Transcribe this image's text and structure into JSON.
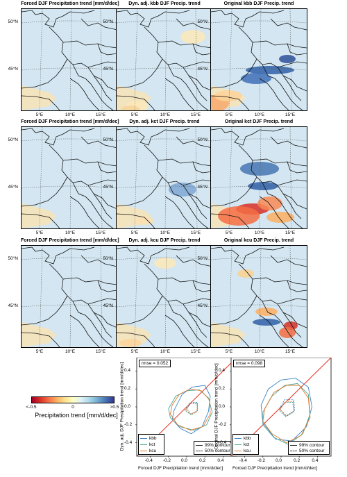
{
  "maps": {
    "lat_ticks": [
      "50°N",
      "45°N"
    ],
    "lon_ticks": [
      "5°E",
      "10°E",
      "15°E"
    ],
    "titles": [
      [
        "Forced DJF Precipitation trend [mm/d/dec]",
        "Dyn. adj. kbb DJF Precip. trend",
        "Original kbb DJF Precip. trend"
      ],
      [
        "Forced DJF Precipitation trend [mm/d/dec]",
        "Dyn. adj. kct DJF Precip. trend",
        "Original kct DJF Precip. trend"
      ],
      [
        "Forced DJF Precipitation trend [mm/d/dec]",
        "Dyn. adj. kcu DJF Precip. trend",
        "Original kcu DJF Precip. trend"
      ]
    ]
  },
  "colorbar": {
    "min_label": "<-0.5",
    "mid_label": "0",
    "max_label": ">0.5",
    "title": "Precipitation trend [mm/d/dec]",
    "colors": [
      "#a50026",
      "#d73027",
      "#f46d43",
      "#fdae61",
      "#fee090",
      "#ffffbf",
      "#e0f3f8",
      "#abd9e9",
      "#74add1",
      "#4575b4",
      "#313695"
    ]
  },
  "chart_data": [
    {
      "type": "scatter",
      "rmse_label": "rmse = 0.052",
      "xlabel": "Forced DJF Precipitation trend [mm/d/dec]",
      "ylabel": "Dyn. adj. DJF Precipitation trend [mm/d/dec]",
      "xlim": [
        -0.55,
        0.55
      ],
      "ylim": [
        -0.55,
        0.55
      ],
      "x_ticks": [
        "-0.4",
        "-0.2",
        "0.0",
        "0.2",
        "0.4"
      ],
      "y_ticks": [
        "-0.4",
        "-0.2",
        "0.0",
        "0.2",
        "0.4"
      ],
      "x_tick_values": [
        -0.4,
        -0.2,
        0.0,
        0.2,
        0.4
      ],
      "y_tick_values": [
        -0.4,
        -0.2,
        0.0,
        0.2,
        0.4
      ],
      "one_to_one_line": true,
      "series": [
        {
          "name": "kbb",
          "color": "#3a86c8",
          "outer": [
            [
              -0.14,
              -0.04
            ],
            [
              -0.05,
              0.14
            ],
            [
              0.06,
              0.22
            ],
            [
              0.2,
              0.24
            ],
            [
              0.26,
              0.12
            ],
            [
              0.24,
              -0.05
            ],
            [
              0.17,
              -0.22
            ],
            [
              0.05,
              -0.3
            ],
            [
              -0.07,
              -0.24
            ],
            [
              -0.16,
              -0.14
            ]
          ],
          "inner": [
            [
              0.0,
              -0.02
            ],
            [
              0.05,
              0.05
            ],
            [
              0.12,
              0.05
            ],
            [
              0.12,
              -0.04
            ],
            [
              0.05,
              -0.08
            ]
          ]
        },
        {
          "name": "kct",
          "color": "#4aa89a",
          "outer": [
            [
              -0.2,
              -0.02
            ],
            [
              -0.12,
              0.12
            ],
            [
              0.0,
              0.18
            ],
            [
              0.14,
              0.19
            ],
            [
              0.24,
              0.1
            ],
            [
              0.28,
              -0.06
            ],
            [
              0.22,
              -0.2
            ],
            [
              0.08,
              -0.26
            ],
            [
              -0.08,
              -0.22
            ],
            [
              -0.18,
              -0.12
            ]
          ],
          "inner": [
            [
              -0.02,
              -0.04
            ],
            [
              0.03,
              0.04
            ],
            [
              0.11,
              0.04
            ],
            [
              0.12,
              -0.05
            ],
            [
              0.05,
              -0.09
            ]
          ]
        },
        {
          "name": "kcu",
          "color": "#e07a2c",
          "outer": [
            [
              -0.16,
              0.02
            ],
            [
              -0.08,
              0.14
            ],
            [
              0.04,
              0.2
            ],
            [
              0.16,
              0.18
            ],
            [
              0.25,
              0.08
            ],
            [
              0.26,
              -0.08
            ],
            [
              0.18,
              -0.22
            ],
            [
              0.04,
              -0.26
            ],
            [
              -0.1,
              -0.2
            ],
            [
              -0.18,
              -0.08
            ]
          ],
          "inner": [
            [
              -0.01,
              -0.03
            ],
            [
              0.05,
              0.04
            ],
            [
              0.12,
              0.03
            ],
            [
              0.11,
              -0.06
            ],
            [
              0.04,
              -0.08
            ]
          ]
        }
      ],
      "contour_legend": [
        "99% contour",
        "50% contour"
      ]
    },
    {
      "type": "scatter",
      "rmse_label": "rmse = 0.098",
      "xlabel": "Forced DJF Precipitation trend [mm/d/dec]",
      "ylabel": "Original DJF Precipitation trend [mm/d/dec]",
      "xlim": [
        -0.55,
        0.55
      ],
      "ylim": [
        -0.55,
        0.55
      ],
      "x_ticks": [
        "-0.4",
        "-0.2",
        "0.0",
        "0.2",
        "0.4"
      ],
      "y_ticks": [
        "-0.4",
        "-0.2",
        "0.0",
        "0.2",
        "0.4"
      ],
      "x_tick_values": [
        -0.4,
        -0.2,
        0.0,
        0.2,
        0.4
      ],
      "y_tick_values": [
        -0.4,
        -0.2,
        0.0,
        0.2,
        0.4
      ],
      "one_to_one_line": true,
      "series": [
        {
          "name": "kbb",
          "color": "#3a86c8",
          "outer": [
            [
              -0.22,
              0.02
            ],
            [
              -0.14,
              0.2
            ],
            [
              0.0,
              0.3
            ],
            [
              0.16,
              0.32
            ],
            [
              0.3,
              0.22
            ],
            [
              0.34,
              0.0
            ],
            [
              0.28,
              -0.22
            ],
            [
              0.12,
              -0.38
            ],
            [
              -0.06,
              -0.36
            ],
            [
              -0.2,
              -0.18
            ]
          ],
          "inner": [
            [
              -0.02,
              -0.02
            ],
            [
              0.04,
              0.08
            ],
            [
              0.14,
              0.08
            ],
            [
              0.15,
              -0.04
            ],
            [
              0.06,
              -0.1
            ]
          ]
        },
        {
          "name": "kct",
          "color": "#4aa89a",
          "outer": [
            [
              -0.2,
              -0.06
            ],
            [
              -0.1,
              0.12
            ],
            [
              0.04,
              0.24
            ],
            [
              0.18,
              0.26
            ],
            [
              0.3,
              0.14
            ],
            [
              0.32,
              -0.08
            ],
            [
              0.24,
              -0.3
            ],
            [
              0.08,
              -0.42
            ],
            [
              -0.08,
              -0.34
            ],
            [
              -0.2,
              -0.2
            ]
          ],
          "inner": [
            [
              -0.02,
              -0.04
            ],
            [
              0.04,
              0.05
            ],
            [
              0.13,
              0.05
            ],
            [
              0.14,
              -0.06
            ],
            [
              0.05,
              -0.11
            ]
          ]
        },
        {
          "name": "kcu",
          "color": "#e07a2c",
          "outer": [
            [
              -0.18,
              -0.02
            ],
            [
              -0.08,
              0.16
            ],
            [
              0.06,
              0.24
            ],
            [
              0.2,
              0.24
            ],
            [
              0.3,
              0.1
            ],
            [
              0.32,
              -0.12
            ],
            [
              0.22,
              -0.32
            ],
            [
              0.06,
              -0.4
            ],
            [
              -0.1,
              -0.3
            ],
            [
              -0.2,
              -0.16
            ]
          ],
          "inner": [
            [
              -0.01,
              -0.03
            ],
            [
              0.05,
              0.06
            ],
            [
              0.14,
              0.06
            ],
            [
              0.14,
              -0.05
            ],
            [
              0.05,
              -0.1
            ]
          ]
        }
      ],
      "contour_legend": [
        "99% contour",
        "50% contour"
      ]
    }
  ]
}
